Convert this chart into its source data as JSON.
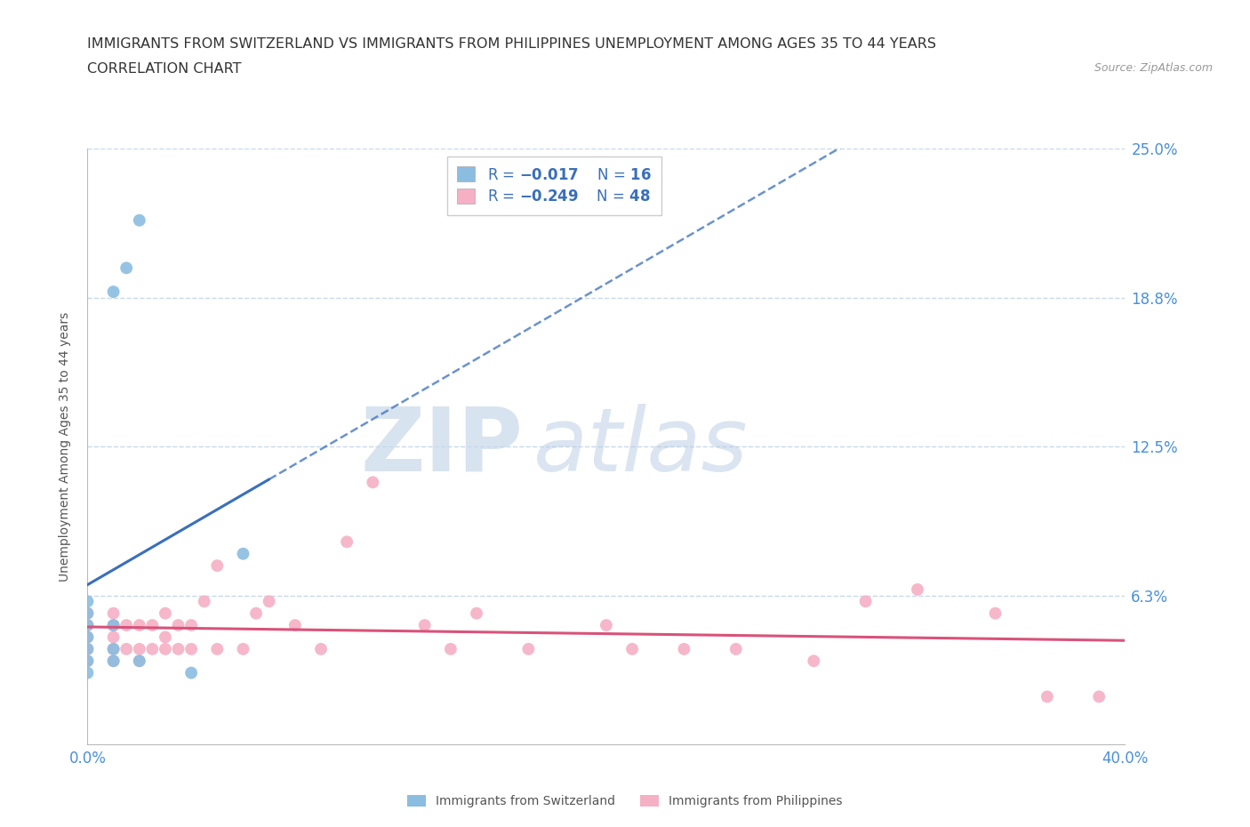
{
  "title_line1": "IMMIGRANTS FROM SWITZERLAND VS IMMIGRANTS FROM PHILIPPINES UNEMPLOYMENT AMONG AGES 35 TO 44 YEARS",
  "title_line2": "CORRELATION CHART",
  "source_text": "Source: ZipAtlas.com",
  "ylabel": "Unemployment Among Ages 35 to 44 years",
  "watermark_zip": "ZIP",
  "watermark_atlas": "atlas",
  "x_min": 0.0,
  "x_max": 0.4,
  "y_min": 0.0,
  "y_max": 0.25,
  "x_ticks": [
    0.0,
    0.1,
    0.2,
    0.3,
    0.4
  ],
  "x_tick_labels": [
    "0.0%",
    "",
    "",
    "",
    "40.0%"
  ],
  "y_ticks": [
    0.0,
    0.0625,
    0.125,
    0.1875,
    0.25
  ],
  "y_tick_labels": [
    "",
    "6.3%",
    "12.5%",
    "18.8%",
    "25.0%"
  ],
  "switzerland_color": "#8bbde0",
  "philippines_color": "#f5b0c5",
  "trend_switzerland_color": "#3a6fba",
  "trend_philippines_color": "#d9527a",
  "grid_color": "#c8d8ea",
  "legend_R_color": "#3a6fba",
  "legend_text_color": "#3a6fba",
  "tick_color": "#4a90d9",
  "switzerland_x": [
    0.0,
    0.0,
    0.0,
    0.0,
    0.0,
    0.0,
    0.0,
    0.01,
    0.01,
    0.01,
    0.01,
    0.015,
    0.02,
    0.02,
    0.04,
    0.06
  ],
  "switzerland_y": [
    0.03,
    0.035,
    0.04,
    0.045,
    0.05,
    0.055,
    0.06,
    0.035,
    0.04,
    0.05,
    0.19,
    0.2,
    0.035,
    0.22,
    0.03,
    0.08
  ],
  "philippines_x": [
    0.0,
    0.0,
    0.0,
    0.0,
    0.0,
    0.01,
    0.01,
    0.01,
    0.01,
    0.01,
    0.015,
    0.015,
    0.02,
    0.02,
    0.02,
    0.025,
    0.025,
    0.03,
    0.03,
    0.03,
    0.035,
    0.035,
    0.04,
    0.04,
    0.045,
    0.05,
    0.05,
    0.06,
    0.065,
    0.07,
    0.08,
    0.09,
    0.1,
    0.11,
    0.13,
    0.14,
    0.15,
    0.17,
    0.2,
    0.21,
    0.23,
    0.25,
    0.28,
    0.3,
    0.32,
    0.35,
    0.37,
    0.39
  ],
  "philippines_y": [
    0.035,
    0.04,
    0.045,
    0.05,
    0.055,
    0.035,
    0.04,
    0.045,
    0.05,
    0.055,
    0.04,
    0.05,
    0.035,
    0.04,
    0.05,
    0.04,
    0.05,
    0.04,
    0.045,
    0.055,
    0.04,
    0.05,
    0.04,
    0.05,
    0.06,
    0.04,
    0.075,
    0.04,
    0.055,
    0.06,
    0.05,
    0.04,
    0.085,
    0.11,
    0.05,
    0.04,
    0.055,
    0.04,
    0.05,
    0.04,
    0.04,
    0.04,
    0.035,
    0.06,
    0.065,
    0.055,
    0.02,
    0.02
  ],
  "title_fontsize": 11.5,
  "label_fontsize": 10,
  "tick_fontsize": 12,
  "legend_fontsize": 12,
  "marker_size": 10,
  "axis_color": "#bbbbbb",
  "background_color": "#ffffff"
}
